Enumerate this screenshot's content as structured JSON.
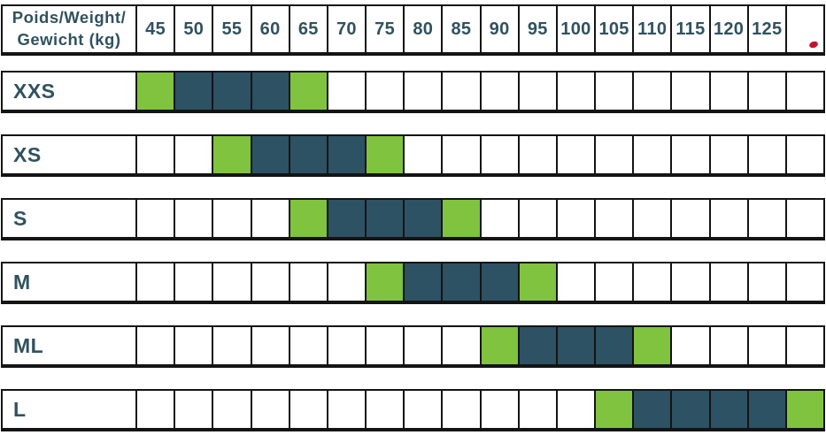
{
  "header": {
    "label_line1": "Poids/Weight/",
    "label_line2": "Gewicht (kg)",
    "weights": [
      "45",
      "50",
      "55",
      "60",
      "65",
      "70",
      "75",
      "80",
      "85",
      "90",
      "95",
      "100",
      "105",
      "110",
      "115",
      "120",
      "125"
    ],
    "extra_column": {
      "label": "",
      "marker": "red-dot"
    }
  },
  "colors": {
    "green": "#80c33e",
    "dark": "#2c5263",
    "grid": "#141414",
    "text": "#30525f",
    "red_dot": "#c8102e",
    "background": "#ffffff"
  },
  "rows": [
    {
      "size": "XXS",
      "cells": [
        "green",
        "dark",
        "dark",
        "dark",
        "green",
        "",
        "",
        "",
        "",
        "",
        "",
        "",
        "",
        "",
        "",
        "",
        "",
        ""
      ]
    },
    {
      "size": "XS",
      "cells": [
        "",
        "",
        "green",
        "dark",
        "dark",
        "dark",
        "green",
        "",
        "",
        "",
        "",
        "",
        "",
        "",
        "",
        "",
        "",
        ""
      ]
    },
    {
      "size": "S",
      "cells": [
        "",
        "",
        "",
        "",
        "green",
        "dark",
        "dark",
        "dark",
        "green",
        "",
        "",
        "",
        "",
        "",
        "",
        "",
        "",
        ""
      ]
    },
    {
      "size": "M",
      "cells": [
        "",
        "",
        "",
        "",
        "",
        "",
        "green",
        "dark",
        "dark",
        "dark",
        "green",
        "",
        "",
        "",
        "",
        "",
        "",
        ""
      ]
    },
    {
      "size": "ML",
      "cells": [
        "",
        "",
        "",
        "",
        "",
        "",
        "",
        "",
        "",
        "green",
        "dark",
        "dark",
        "dark",
        "green",
        "",
        "",
        "",
        ""
      ]
    },
    {
      "size": "L",
      "cells": [
        "",
        "",
        "",
        "",
        "",
        "",
        "",
        "",
        "",
        "",
        "",
        "",
        "green",
        "dark",
        "dark",
        "dark",
        "dark",
        "green"
      ]
    }
  ],
  "chart_data": {
    "type": "heatmap",
    "title": "Poids/Weight/Gewicht (kg)",
    "x_tick_labels": [
      45,
      50,
      55,
      60,
      65,
      70,
      75,
      80,
      85,
      90,
      95,
      100,
      105,
      110,
      115,
      120,
      125
    ],
    "y_categories": [
      "XXS",
      "XS",
      "S",
      "M",
      "ML",
      "L"
    ],
    "legend_position": "none",
    "grid": true,
    "series": [
      {
        "name": "XXS",
        "green_cells_kg": [
          45,
          65
        ],
        "dark_cells_kg": [
          50,
          55,
          60
        ]
      },
      {
        "name": "XS",
        "green_cells_kg": [
          55,
          75
        ],
        "dark_cells_kg": [
          60,
          65,
          70
        ]
      },
      {
        "name": "S",
        "green_cells_kg": [
          65,
          85
        ],
        "dark_cells_kg": [
          70,
          75,
          80
        ]
      },
      {
        "name": "M",
        "green_cells_kg": [
          75,
          95
        ],
        "dark_cells_kg": [
          80,
          85,
          90
        ]
      },
      {
        "name": "ML",
        "green_cells_kg": [
          90,
          110
        ],
        "dark_cells_kg": [
          95,
          100,
          105
        ]
      },
      {
        "name": "L",
        "green_cells_kg": [
          105,
          "125+"
        ],
        "dark_cells_kg": [
          110,
          115,
          120,
          125
        ]
      }
    ]
  }
}
